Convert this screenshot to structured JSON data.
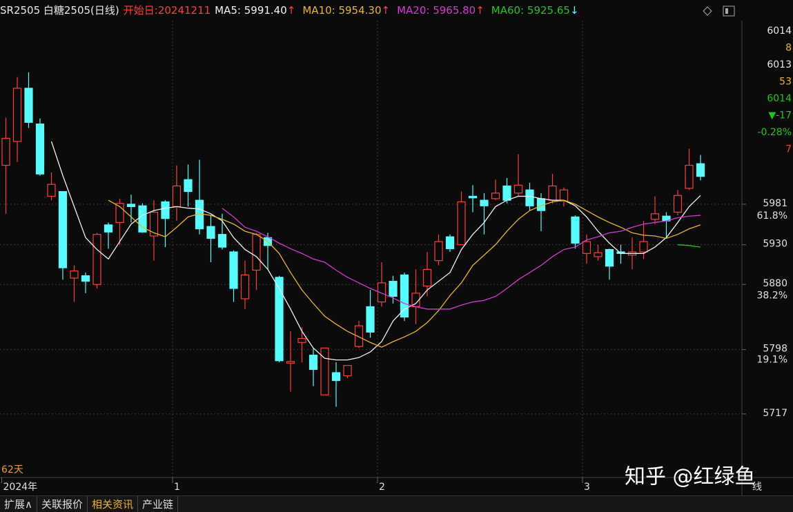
{
  "header": {
    "title": "SR2505 白糖2505(日线)",
    "start_date": "开始日:20241211"
  },
  "chart_data": {
    "type": "candlestick",
    "categories": [
      "2024年",
      null,
      null,
      null,
      null,
      null,
      null,
      null,
      null,
      null,
      null,
      null,
      null,
      null,
      null,
      "1",
      null,
      null,
      null,
      null,
      null,
      null,
      null,
      null,
      null,
      null,
      null,
      null,
      null,
      null,
      null,
      null,
      null,
      "2",
      null,
      null,
      null,
      null,
      null,
      null,
      null,
      null,
      null,
      null,
      null,
      null,
      null,
      null,
      null,
      null,
      null,
      "3",
      null,
      null,
      null,
      null,
      null,
      null,
      null,
      null,
      null,
      null
    ],
    "candles": {
      "up_color": "#ff3c3c",
      "down_color": "#54fcfc",
      "open": [
        6030,
        6060,
        6127,
        6082,
        5991,
        5997,
        5888,
        5891,
        5880,
        5955,
        5958,
        5981,
        5979,
        5941,
        5984,
        5978,
        6012,
        5986,
        5953,
        5943,
        5921,
        5862,
        5898,
        5939,
        5889,
        5781,
        5807,
        5791,
        5741,
        5769,
        5765,
        5802,
        5852,
        5858,
        5884,
        5892,
        5852,
        5878,
        5910,
        5940,
        5930,
        5991,
        5986,
        5988,
        6004,
        5995,
        5999,
        5988,
        5986,
        5985,
        5965,
        5919,
        5915,
        5924,
        5921,
        5917,
        5921,
        5962,
        5966,
        5971,
        6001,
        6032
      ],
      "high": [
        6090,
        6141,
        6147,
        6089,
        6021,
        5997,
        5904,
        5895,
        5945,
        5958,
        5988,
        5993,
        5982,
        5986,
        5986,
        6030,
        6031,
        6037,
        5967,
        5969,
        5923,
        5910,
        5945,
        5945,
        5891,
        5821,
        5826,
        5800,
        5800,
        5782,
        5778,
        5834,
        5873,
        5908,
        5891,
        5895,
        5899,
        5921,
        5943,
        5943,
        5997,
        6005,
        5995,
        6012,
        6014,
        6044,
        6008,
        5995,
        6019,
        6002,
        5967,
        5943,
        5930,
        5925,
        5930,
        5939,
        5960,
        5991,
        5971,
        5999,
        6051,
        6043
      ],
      "low": [
        5969,
        6034,
        6077,
        6017,
        5986,
        5886,
        5858,
        5869,
        5875,
        5925,
        5930,
        5958,
        5945,
        5910,
        5927,
        5960,
        5978,
        5943,
        5908,
        5924,
        5858,
        5849,
        5873,
        5899,
        5782,
        5745,
        5782,
        5752,
        5741,
        5726,
        5762,
        5800,
        5813,
        5852,
        5856,
        5834,
        5830,
        5865,
        5904,
        5921,
        5930,
        5971,
        5943,
        5986,
        5982,
        5991,
        5973,
        5947,
        5982,
        5978,
        5925,
        5906,
        5910,
        5886,
        5906,
        5899,
        5912,
        5956,
        5939,
        5967,
        5999,
        6011
      ],
      "close": [
        6064,
        6127,
        6084,
        6019,
        6006,
        5901,
        5897,
        5884,
        5943,
        5946,
        5982,
        5978,
        5946,
        5971,
        5963,
        6004,
        5997,
        5950,
        5938,
        5927,
        5875,
        5892,
        5943,
        5929,
        5784,
        5783,
        5812,
        5773,
        5800,
        5759,
        5778,
        5828,
        5820,
        5882,
        5865,
        5839,
        5869,
        5899,
        5934,
        5925,
        5984,
        5989,
        5979,
        5995,
        5986,
        6005,
        5979,
        5973,
        6004,
        5999,
        5932,
        5934,
        5920,
        5903,
        5919,
        5921,
        5934,
        5969,
        5960,
        5992,
        6030,
        6016
      ]
    },
    "series": [
      {
        "name": "MA5: 5991.40",
        "arrow": "↑",
        "arrow_color": "#ff3c3c",
        "color": "#f0f0f0",
        "values": [
          null,
          null,
          null,
          null,
          6060,
          6017,
          5978,
          5939,
          5924,
          5912,
          5934,
          5956,
          5967,
          5973,
          5976,
          5978,
          5976,
          5975,
          5969,
          5960,
          5939,
          5924,
          5915,
          5899,
          5875,
          5849,
          5821,
          5800,
          5787,
          5785,
          5785,
          5788,
          5795,
          5808,
          5834,
          5849,
          5856,
          5873,
          5884,
          5895,
          5924,
          5943,
          5958,
          5978,
          5986,
          5991,
          5991,
          5988,
          5986,
          5986,
          5979,
          5965,
          5947,
          5932,
          5919,
          5919,
          5919,
          5927,
          5939,
          5958,
          5978,
          5992
        ]
      },
      {
        "name": "MA10: 5954.30",
        "arrow": "↑",
        "arrow_color": "#ff3c3c",
        "color": "#e8b820",
        "values": [
          null,
          null,
          null,
          null,
          null,
          null,
          null,
          null,
          null,
          5986,
          5978,
          5965,
          5952,
          5945,
          5940,
          5952,
          5965,
          5969,
          5967,
          5962,
          5956,
          5947,
          5943,
          5934,
          5919,
          5895,
          5873,
          5856,
          5840,
          5830,
          5821,
          5814,
          5807,
          5801,
          5808,
          5814,
          5821,
          5832,
          5847,
          5866,
          5882,
          5904,
          5917,
          5930,
          5947,
          5962,
          5973,
          5979,
          5984,
          5986,
          5981,
          5973,
          5965,
          5958,
          5952,
          5945,
          5942,
          5941,
          5938,
          5943,
          5950,
          5955
        ]
      },
      {
        "name": "MA20: 5965.80",
        "arrow": "↑",
        "arrow_color": "#ff3c3c",
        "color": "#d23ad2",
        "values": [
          null,
          null,
          null,
          null,
          null,
          null,
          null,
          null,
          null,
          null,
          null,
          null,
          null,
          null,
          null,
          null,
          null,
          null,
          null,
          5976,
          5965,
          5952,
          5947,
          5940,
          5932,
          5925,
          5919,
          5912,
          5908,
          5898,
          5889,
          5882,
          5875,
          5869,
          5863,
          5856,
          5852,
          5849,
          5849,
          5849,
          5854,
          5858,
          5860,
          5865,
          5875,
          5886,
          5895,
          5904,
          5915,
          5924,
          5927,
          5936,
          5940,
          5945,
          5947,
          5952,
          5956,
          5958,
          5960,
          5964,
          5966,
          5967
        ]
      },
      {
        "name": "MA60: 5925.65",
        "arrow": "↓",
        "arrow_color": "#54fcfc",
        "color": "#22c422",
        "values": [
          null,
          null,
          null,
          null,
          null,
          null,
          null,
          null,
          null,
          null,
          null,
          null,
          null,
          null,
          null,
          null,
          null,
          null,
          null,
          null,
          null,
          null,
          null,
          null,
          null,
          null,
          null,
          null,
          null,
          null,
          null,
          null,
          null,
          null,
          null,
          null,
          null,
          null,
          null,
          null,
          null,
          null,
          null,
          null,
          null,
          null,
          null,
          null,
          null,
          null,
          null,
          null,
          null,
          null,
          null,
          null,
          null,
          null,
          null,
          5930,
          5929,
          5927
        ]
      }
    ],
    "ylim": [
      5637,
      6212
    ],
    "yticks": [
      5717,
      5798,
      5880,
      5930,
      5981
    ],
    "fib_levels": [
      {
        "value": 5966,
        "label": "61.8%"
      },
      {
        "value": 5866,
        "label": "38.2%"
      },
      {
        "value": 5785,
        "label": "19.1%"
      }
    ],
    "grid": true,
    "day_count": "62天"
  },
  "quote_panel": [
    {
      "text": "6014",
      "color": "#e8e8e8"
    },
    {
      "text": "8",
      "color": "#e8b820"
    },
    {
      "text": "6013",
      "color": "#e8e8e8"
    },
    {
      "text": "53",
      "color": "#e8b820"
    },
    {
      "text": "6014",
      "color": "#22c422"
    },
    {
      "text": "▼-17",
      "color": "#22c422"
    },
    {
      "text": "-0.28%",
      "color": "#22c422"
    },
    {
      "text": "7",
      "color": "#ff3c3c"
    }
  ],
  "period_tab": "线",
  "tabs": [
    "扩展∧",
    "关联报价",
    "相关资讯",
    "产业链"
  ],
  "watermark": "知乎 @红绿鱼"
}
